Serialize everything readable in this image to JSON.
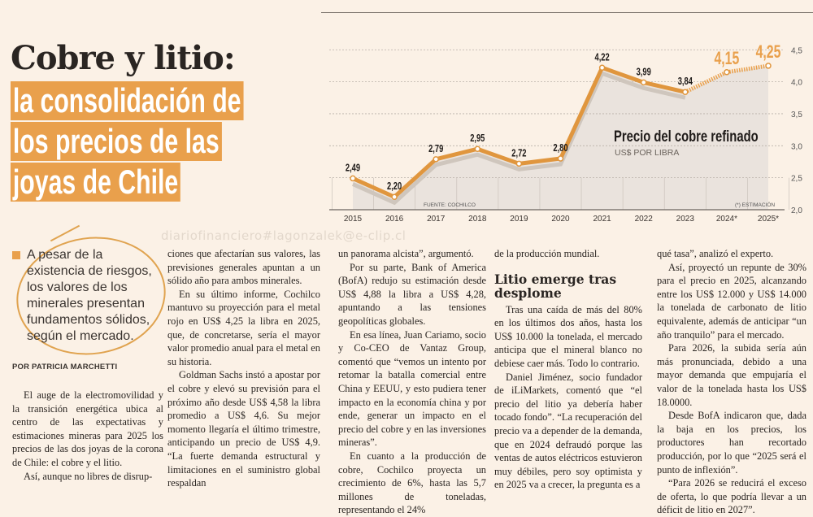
{
  "headline": {
    "title": "Cobre y litio:",
    "highlight_lines": [
      "la consolidación de",
      "los precios de las",
      "joyas de Chile"
    ]
  },
  "watermark": "diariofinanciero#lagonzalek@e-clip.cl",
  "pull_quote": "A pesar de la existencia de riesgos, los valores de los minerales presentan fundamentos sólidos, según el mercado.",
  "byline": "POR PATRICIA MARCHETTI",
  "columns": {
    "c1": [
      "El auge de la electromovilidad y la transición energética ubica al centro de las expectativas y estimaciones mineras para 2025 los precios de las dos joyas de la corona de Chile: el cobre y el litio.",
      "Así, aunque no libres de disrup-"
    ],
    "c2": [
      "ciones que afectarían sus valores, las previsiones generales apuntan a un sólido año para ambos minerales.",
      "En su último informe, Cochilco mantuvo su proyección para el metal rojo en US$ 4,25 la libra en 2025, que, de concretarse, sería el mayor valor promedio anual para el metal en su historia.",
      "Goldman Sachs instó a apostar por el cobre y elevó su previsión para el próximo año desde US$ 4,58 la libra promedio a US$ 4,6. Su mejor momento llegaría el último trimestre, anticipando un precio de US$ 4,9. “La fuerte demanda estructural y limitaciones en el suministro global respaldan"
    ],
    "c3": [
      "un panorama alcista”, argumentó.",
      "Por su parte, Bank of America (BofA) redujo su estimación desde US$ 4,88 la libra a US$ 4,28, apuntando a las tensiones geopolíticas globales.",
      "En esa línea, Juan Cariamo, socio y Co-CEO de Vantaz Group, comentó que “vemos un intento por retomar la batalla comercial entre China y EEUU, y esto pudiera tener impacto en la economía china y por ende, generar un impacto en el precio del cobre y en las inversiones mineras”.",
      "En cuanto a la producción de cobre, Cochilco proyecta un crecimiento de 6%, hasta las 5,7 millones de toneladas, representando el 24%"
    ],
    "c4_intro": "de la producción mundial.",
    "c4_subhead": "Litio emerge tras desplome",
    "c4": [
      "Tras una caída de más del 80% en los últimos dos años, hasta los US$ 10.000 la tonelada, el mercado anticipa que el mineral blanco no debiese caer más. Todo lo contrario.",
      "Daniel Jiménez, socio fundador de iLiMarkets, comentó que “el precio del litio ya debería haber tocado fondo”. “La recuperación del precio va a depender de la demanda, que en 2024 defraudó porque las ventas de autos eléctricos estuvieron muy débiles, pero soy optimista y en 2025 va a crecer, la pregunta es a"
    ],
    "c5": [
      "qué tasa”, analizó el experto.",
      "Así, proyectó un repunte de 30% para el precio en 2025, alcanzando entre los US$ 12.000 y US$ 14.000 la tonelada de carbonato de litio equivalente, además de anticipar “un año tranquilo” para el mercado.",
      "Para 2026, la subida sería aún más pronunciada, debido a una mayor demanda que empujaría el valor de la tonelada hasta los US$ 18.0000.",
      "Desde BofA indicaron que, dada la baja en los precios, los productores han recortado producción, por lo que “2025 será el punto de inflexión”.",
      "“Para 2026 se reducirá el exceso de oferta, lo que podría llevar a un déficit de litio en 2027”."
    ]
  },
  "chart_data": {
    "type": "line",
    "title": "Precio del cobre refinado",
    "subtitle": "US$ POR LIBRA",
    "source": "FUENTE: COCHILCO",
    "note": "(*) ESTIMACIÓN",
    "categories": [
      "2015",
      "2016",
      "2017",
      "2018",
      "2019",
      "2020",
      "2021",
      "2022",
      "2023",
      "2024*",
      "2025*"
    ],
    "values": [
      2.49,
      2.2,
      2.79,
      2.95,
      2.72,
      2.8,
      4.22,
      3.99,
      3.84,
      4.15,
      4.25
    ],
    "value_labels": [
      "2,49",
      "2,20",
      "2,79",
      "2,95",
      "2,72",
      "2,80",
      "4,22",
      "3,99",
      "3,84",
      "4,15",
      "4,25"
    ],
    "estimated": [
      false,
      false,
      false,
      false,
      false,
      false,
      false,
      false,
      false,
      true,
      true
    ],
    "ylim": [
      2.0,
      4.5
    ],
    "yticks": [
      2.0,
      2.5,
      3.0,
      3.5,
      4.0,
      4.5
    ],
    "ytick_labels": [
      "2,0",
      "2,5",
      "3,0",
      "3,5",
      "4,0",
      "4,5"
    ],
    "grid": true,
    "colors": {
      "line": "#e0963e",
      "estimate": "#e9a04c",
      "fill": "#e6e0da",
      "actual_label": "#1f1b19"
    }
  }
}
